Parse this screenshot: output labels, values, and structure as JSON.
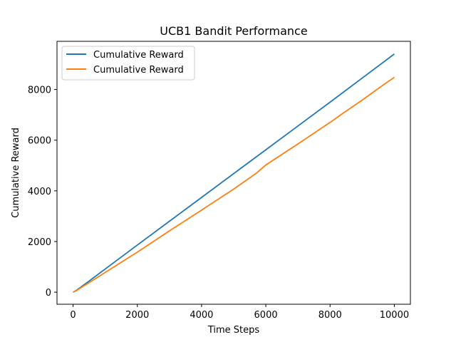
{
  "chart_data": {
    "type": "line",
    "title": "UCB1 Bandit Performance",
    "xlabel": "Time Steps",
    "ylabel": "Cumulative Reward",
    "xlim": [
      -500,
      10500
    ],
    "ylim": [
      -475,
      9900
    ],
    "xticks": [
      0,
      2000,
      4000,
      6000,
      8000,
      10000
    ],
    "yticks": [
      0,
      2000,
      4000,
      6000,
      8000
    ],
    "grid": false,
    "legend_position": "top-left",
    "series": [
      {
        "name": "Cumulative Reward",
        "color": "#1f77b4",
        "x": [
          0,
          100,
          200,
          500,
          1000,
          2000,
          3000,
          4000,
          5000,
          6000,
          7000,
          8000,
          9000,
          10000
        ],
        "y": [
          0,
          70,
          160,
          440,
          915,
          1860,
          2800,
          3740,
          4680,
          5620,
          6560,
          7500,
          8450,
          9400
        ]
      },
      {
        "name": "Cumulative Reward",
        "color": "#ff7f0e",
        "x": [
          0,
          100,
          200,
          500,
          1000,
          2000,
          2500,
          3000,
          4000,
          5000,
          5700,
          6000,
          7000,
          8000,
          8400,
          9000,
          9600,
          10000
        ],
        "y": [
          0,
          60,
          140,
          380,
          780,
          1580,
          2000,
          2420,
          3240,
          4070,
          4690,
          5020,
          5850,
          6700,
          7060,
          7580,
          8130,
          8480
        ]
      }
    ]
  }
}
